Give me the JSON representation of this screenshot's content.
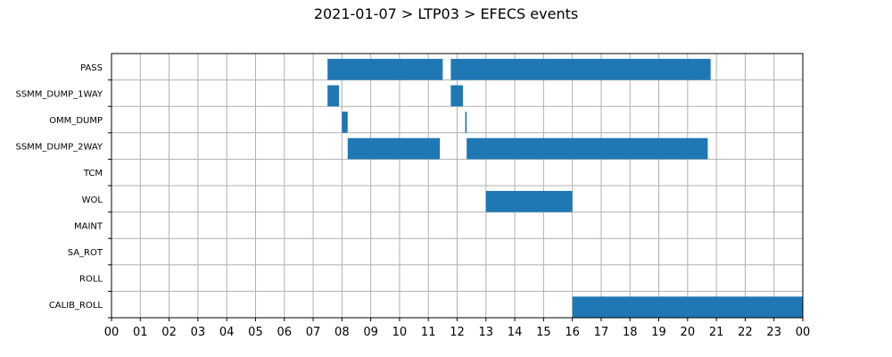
{
  "title": "2021-01-07 > LTP03 > EFECS events",
  "chart_data": {
    "type": "bar",
    "orientation": "horizontal-timeline",
    "title": "2021-01-07 > LTP03 > EFECS events",
    "xlabel": "",
    "ylabel": "",
    "xlim": [
      0,
      24
    ],
    "x_ticks": [
      "00",
      "01",
      "02",
      "03",
      "04",
      "05",
      "06",
      "07",
      "08",
      "09",
      "10",
      "11",
      "12",
      "13",
      "14",
      "15",
      "16",
      "17",
      "18",
      "19",
      "20",
      "21",
      "22",
      "23",
      "00"
    ],
    "categories": [
      "PASS",
      "SSMM_DUMP_1WAY",
      "OMM_DUMP",
      "SSMM_DUMP_2WAY",
      "TCM",
      "WOL",
      "MAINT",
      "SA_ROT",
      "ROLL",
      "CALIB_ROLL"
    ],
    "grid": true,
    "color": "#1f77b4",
    "series": [
      {
        "category": "PASS",
        "intervals": [
          [
            7.5,
            11.5
          ],
          [
            11.78,
            20.8
          ]
        ]
      },
      {
        "category": "SSMM_DUMP_1WAY",
        "intervals": [
          [
            7.5,
            7.9
          ],
          [
            11.78,
            12.2
          ]
        ]
      },
      {
        "category": "OMM_DUMP",
        "intervals": [
          [
            8.0,
            8.2
          ],
          [
            12.28,
            12.33
          ]
        ]
      },
      {
        "category": "SSMM_DUMP_2WAY",
        "intervals": [
          [
            8.2,
            11.4
          ],
          [
            12.33,
            20.7
          ]
        ]
      },
      {
        "category": "TCM",
        "intervals": []
      },
      {
        "category": "WOL",
        "intervals": [
          [
            13.0,
            16.0
          ]
        ]
      },
      {
        "category": "MAINT",
        "intervals": []
      },
      {
        "category": "SA_ROT",
        "intervals": []
      },
      {
        "category": "ROLL",
        "intervals": []
      },
      {
        "category": "CALIB_ROLL",
        "intervals": [
          [
            16.0,
            24.0
          ]
        ]
      }
    ]
  }
}
